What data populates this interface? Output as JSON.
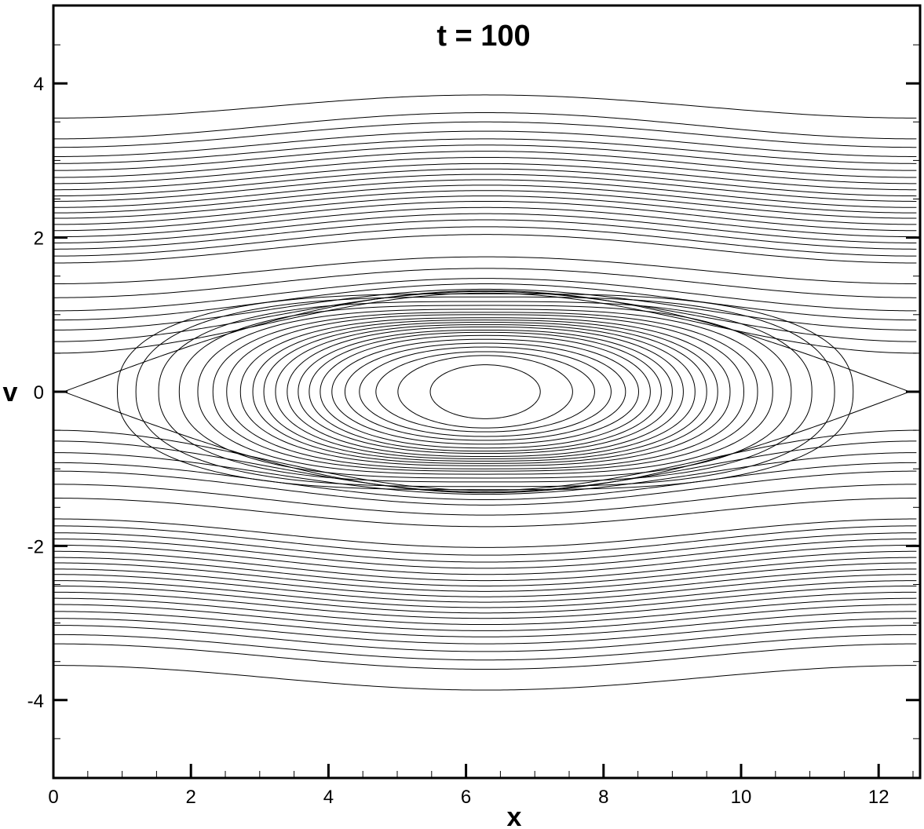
{
  "chart_data": {
    "type": "contour",
    "title": "t = 100",
    "xlabel": "x",
    "ylabel": "v",
    "xlim": [
      0,
      12.566
    ],
    "ylim": [
      -5,
      5
    ],
    "x_major_ticks": [
      0,
      2,
      4,
      6,
      8,
      10,
      12
    ],
    "x_minor_step": 0.5,
    "y_major_ticks": [
      -4,
      -2,
      0,
      2,
      4
    ],
    "y_minor_step": 0.5,
    "x_tick_labels": [
      "0",
      "2",
      "4",
      "6",
      "8",
      "10",
      "12"
    ],
    "y_tick_labels": [
      "-4",
      "-2",
      "0",
      "2",
      "4"
    ],
    "grid": false,
    "line_color": "#000000",
    "field": {
      "description": "phase-space contours of a trapped-particle island centred near x = 2π, v = 0",
      "x_center": 6.28,
      "v_center": 0.0,
      "separatrix_v_halfwidth": 1.38,
      "separatrix_x_ends": [
        0.15,
        12.45
      ]
    },
    "trapped_contours": [
      {
        "x_half_width": 0.8,
        "v_half_height": 0.35
      },
      {
        "x_half_width": 1.27,
        "v_half_height": 0.47
      },
      {
        "x_half_width": 1.59,
        "v_half_height": 0.52
      },
      {
        "x_half_width": 1.83,
        "v_half_height": 0.58
      },
      {
        "x_half_width": 2.04,
        "v_half_height": 0.63
      },
      {
        "x_half_width": 2.23,
        "v_half_height": 0.68
      },
      {
        "x_half_width": 2.4,
        "v_half_height": 0.73
      },
      {
        "x_half_width": 2.56,
        "v_half_height": 0.77
      },
      {
        "x_half_width": 2.72,
        "v_half_height": 0.8
      },
      {
        "x_half_width": 2.88,
        "v_half_height": 0.84
      },
      {
        "x_half_width": 3.05,
        "v_half_height": 0.87
      },
      {
        "x_half_width": 3.22,
        "v_half_height": 0.9
      },
      {
        "x_half_width": 3.38,
        "v_half_height": 0.93
      },
      {
        "x_half_width": 3.56,
        "v_half_height": 0.96
      },
      {
        "x_half_width": 3.76,
        "v_half_height": 1.0
      },
      {
        "x_half_width": 3.96,
        "v_half_height": 1.03
      },
      {
        "x_half_width": 4.18,
        "v_half_height": 1.07
      },
      {
        "x_half_width": 4.45,
        "v_half_height": 1.12
      },
      {
        "x_half_width": 4.75,
        "v_half_height": 1.17
      },
      {
        "x_half_width": 5.08,
        "v_half_height": 1.23
      },
      {
        "x_half_width": 5.35,
        "v_half_height": 1.27
      }
    ],
    "passing_contours_upper": [
      {
        "v_edge": 3.55,
        "v_mid": 3.85
      },
      {
        "v_edge": 3.28,
        "v_mid": 3.62
      },
      {
        "v_edge": 3.17,
        "v_mid": 3.5
      },
      {
        "v_edge": 3.05,
        "v_mid": 3.38
      },
      {
        "v_edge": 2.96,
        "v_mid": 3.28
      },
      {
        "v_edge": 2.87,
        "v_mid": 3.2
      },
      {
        "v_edge": 2.78,
        "v_mid": 3.12
      },
      {
        "v_edge": 2.7,
        "v_mid": 3.04
      },
      {
        "v_edge": 2.62,
        "v_mid": 2.96
      },
      {
        "v_edge": 2.54,
        "v_mid": 2.89
      },
      {
        "v_edge": 2.47,
        "v_mid": 2.82
      },
      {
        "v_edge": 2.39,
        "v_mid": 2.75
      },
      {
        "v_edge": 2.32,
        "v_mid": 2.68
      },
      {
        "v_edge": 2.25,
        "v_mid": 2.61
      },
      {
        "v_edge": 2.17,
        "v_mid": 2.54
      },
      {
        "v_edge": 2.09,
        "v_mid": 2.47
      },
      {
        "v_edge": 2.01,
        "v_mid": 2.39
      },
      {
        "v_edge": 1.93,
        "v_mid": 2.31
      },
      {
        "v_edge": 1.85,
        "v_mid": 2.23
      },
      {
        "v_edge": 1.76,
        "v_mid": 2.14
      },
      {
        "v_edge": 1.67,
        "v_mid": 2.04
      },
      {
        "v_edge": 1.4,
        "v_mid": 1.75
      },
      {
        "v_edge": 1.22,
        "v_mid": 1.6
      },
      {
        "v_edge": 1.05,
        "v_mid": 1.47
      },
      {
        "v_edge": 0.93,
        "v_mid": 1.4
      },
      {
        "v_edge": 0.8,
        "v_mid": 1.33
      },
      {
        "v_edge": 0.65,
        "v_mid": 1.3
      },
      {
        "v_edge": 0.5,
        "v_mid": 1.28
      }
    ],
    "passing_contours_lower": [
      {
        "v_edge": -3.55,
        "v_mid": -3.87
      },
      {
        "v_edge": -3.27,
        "v_mid": -3.6
      },
      {
        "v_edge": -3.15,
        "v_mid": -3.48
      },
      {
        "v_edge": -3.03,
        "v_mid": -3.37
      },
      {
        "v_edge": -2.94,
        "v_mid": -3.27
      },
      {
        "v_edge": -2.85,
        "v_mid": -3.18
      },
      {
        "v_edge": -2.76,
        "v_mid": -3.1
      },
      {
        "v_edge": -2.68,
        "v_mid": -3.02
      },
      {
        "v_edge": -2.6,
        "v_mid": -2.94
      },
      {
        "v_edge": -2.52,
        "v_mid": -2.87
      },
      {
        "v_edge": -2.45,
        "v_mid": -2.8
      },
      {
        "v_edge": -2.37,
        "v_mid": -2.73
      },
      {
        "v_edge": -2.3,
        "v_mid": -2.66
      },
      {
        "v_edge": -2.22,
        "v_mid": -2.59
      },
      {
        "v_edge": -2.15,
        "v_mid": -2.52
      },
      {
        "v_edge": -2.07,
        "v_mid": -2.45
      },
      {
        "v_edge": -1.99,
        "v_mid": -2.37
      },
      {
        "v_edge": -1.91,
        "v_mid": -2.29
      },
      {
        "v_edge": -1.83,
        "v_mid": -2.21
      },
      {
        "v_edge": -1.74,
        "v_mid": -2.12
      },
      {
        "v_edge": -1.65,
        "v_mid": -2.02
      },
      {
        "v_edge": -1.38,
        "v_mid": -1.75
      },
      {
        "v_edge": -1.2,
        "v_mid": -1.6
      },
      {
        "v_edge": -1.03,
        "v_mid": -1.47
      },
      {
        "v_edge": -0.92,
        "v_mid": -1.4
      },
      {
        "v_edge": -0.79,
        "v_mid": -1.33
      },
      {
        "v_edge": -0.64,
        "v_mid": -1.3
      },
      {
        "v_edge": -0.5,
        "v_mid": -1.28
      }
    ]
  }
}
